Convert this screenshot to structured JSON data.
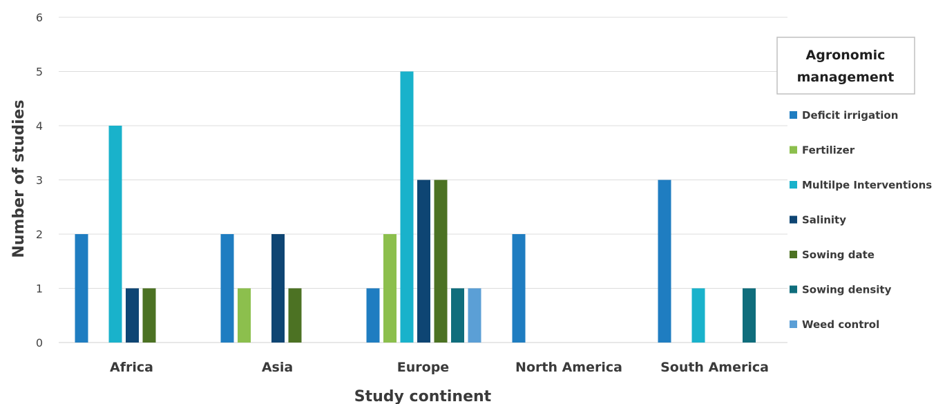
{
  "chart_data": {
    "type": "bar",
    "xlabel": "Study continent",
    "ylabel": "Number of studies",
    "ylim": [
      0,
      6
    ],
    "yticks": [
      0,
      1,
      2,
      3,
      4,
      5,
      6
    ],
    "grid": true,
    "legend_title": "Agronomic management",
    "legend_placement": "right",
    "categories": [
      "Africa",
      "Asia",
      "Europe",
      "North America",
      "South America"
    ],
    "series": [
      {
        "name": "Deficit irrigation",
        "color": "#1f7dc1",
        "values": [
          2,
          2,
          1,
          2,
          3
        ]
      },
      {
        "name": "Fertilizer",
        "color": "#8cbf4d",
        "values": [
          0,
          1,
          2,
          0,
          0
        ]
      },
      {
        "name": "Multilpe Interventions",
        "color": "#19b2cb",
        "values": [
          4,
          0,
          5,
          0,
          1
        ]
      },
      {
        "name": "Salinity",
        "color": "#0e4573",
        "values": [
          1,
          2,
          3,
          0,
          0
        ]
      },
      {
        "name": "Sowing date",
        "color": "#4c7223",
        "values": [
          1,
          1,
          3,
          0,
          0
        ]
      },
      {
        "name": "Sowing density",
        "color": "#0f6d7c",
        "values": [
          0,
          0,
          1,
          0,
          1
        ]
      },
      {
        "name": "Weed control",
        "color": "#5b9fd6",
        "values": [
          0,
          0,
          1,
          0,
          0
        ]
      }
    ]
  }
}
